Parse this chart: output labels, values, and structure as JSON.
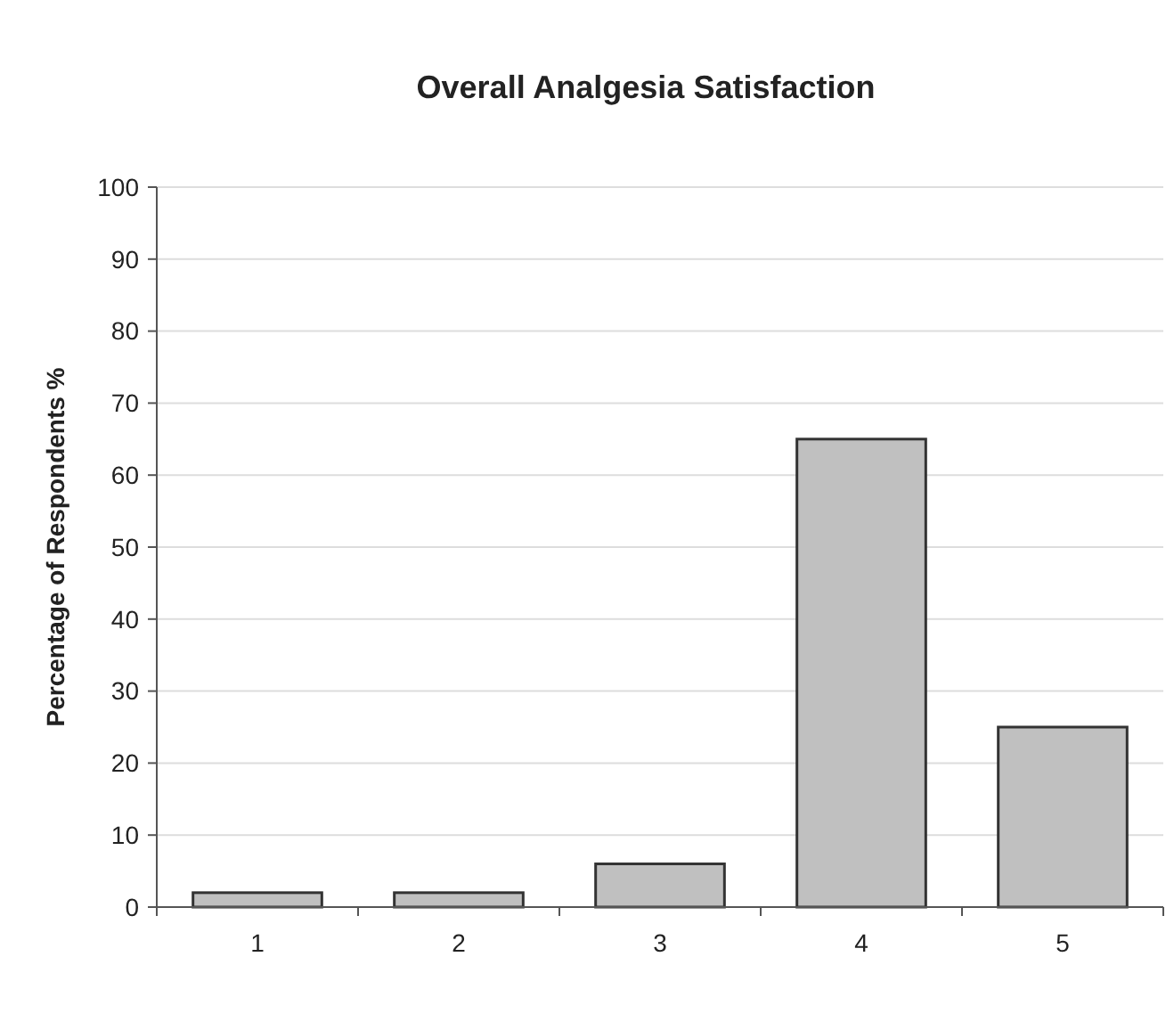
{
  "chart_data": {
    "type": "bar",
    "title": "Overall Analgesia Satisfaction",
    "ylabel": "Percentage of Respondents %",
    "categories": [
      "1",
      "2",
      "3",
      "4",
      "5"
    ],
    "values": [
      2,
      2,
      6,
      65,
      25
    ],
    "color": "#c0c0c0",
    "ylim": [
      0,
      100
    ],
    "yticks": [
      0,
      10,
      20,
      30,
      40,
      50,
      60,
      70,
      80,
      90,
      100
    ],
    "grid": "y"
  }
}
